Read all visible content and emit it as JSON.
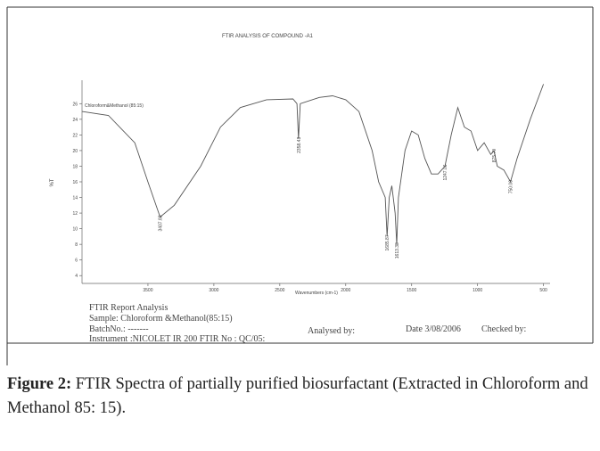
{
  "chart_data": {
    "type": "line",
    "title": "FTIR ANALYSIS OF COMPOUND -A1",
    "x_label": "Wavenumbers (cm-1)",
    "y_label": "%T",
    "x": [
      4000,
      3800,
      3600,
      3500,
      3407.83,
      3300,
      3100,
      2950,
      2800,
      2600,
      2400,
      2370,
      2358.43,
      2345,
      2200,
      2100,
      2000,
      1900,
      1800,
      1750,
      1700,
      1685.87,
      1670,
      1650,
      1625,
      1613.38,
      1600,
      1550,
      1500,
      1450,
      1400,
      1350,
      1300,
      1247.06,
      1200,
      1150,
      1100,
      1050,
      1000,
      950,
      900,
      875.7,
      850,
      800,
      750,
      700,
      600,
      500
    ],
    "series": [
      {
        "name": "Chloroform&Methanol (85:15)",
        "color": "#555555",
        "values": [
          25,
          24.5,
          21,
          16,
          11.5,
          13,
          18,
          23,
          25.5,
          26.5,
          26.6,
          26,
          21.5,
          26,
          26.8,
          27,
          26.5,
          25,
          20,
          16,
          14,
          9,
          14,
          15.5,
          12,
          8,
          14,
          20,
          22.5,
          22,
          19,
          17,
          17,
          18,
          22,
          25.5,
          23,
          22.5,
          20,
          21,
          19.5,
          20,
          18,
          17.5,
          16,
          19,
          24,
          28.5
        ]
      }
    ],
    "xlim": [
      4000,
      450
    ],
    "ylim": [
      3,
      29
    ],
    "xticks": [
      3500,
      3000,
      2500,
      2000,
      1500,
      1000,
      500
    ],
    "yticks": [
      4,
      6,
      8,
      10,
      12,
      14,
      16,
      18,
      20,
      22,
      24,
      26
    ],
    "annotations": [
      {
        "value": 3407.83,
        "label": "3407.83"
      },
      {
        "value": 2358.43,
        "label": "2358.43"
      },
      {
        "value": 1685.87,
        "label": "1685.87"
      },
      {
        "value": 1613.38,
        "label": "1613.38"
      },
      {
        "value": 1247.06,
        "label": "1247.06"
      },
      {
        "value": 875.7,
        "label": "875.70"
      },
      {
        "value": 750,
        "label": "750.00"
      }
    ]
  },
  "report": {
    "heading": "FTIR Report Analysis",
    "sample": "Sample: Chloroform &Methanol(85:15)",
    "batch": "BatchNo.: -------",
    "instrument": "Instrument :NICOLET IR 200 FTIR No : QC/05:",
    "analysed": "Analysed by:",
    "date": "Date 3/08/2006",
    "checked": "Checked by:"
  },
  "caption": {
    "label": "Figure 2:",
    "text": " FTIR Spectra of partially purified biosurfactant (Extracted in Chloroform and Methanol 85: 15)."
  }
}
